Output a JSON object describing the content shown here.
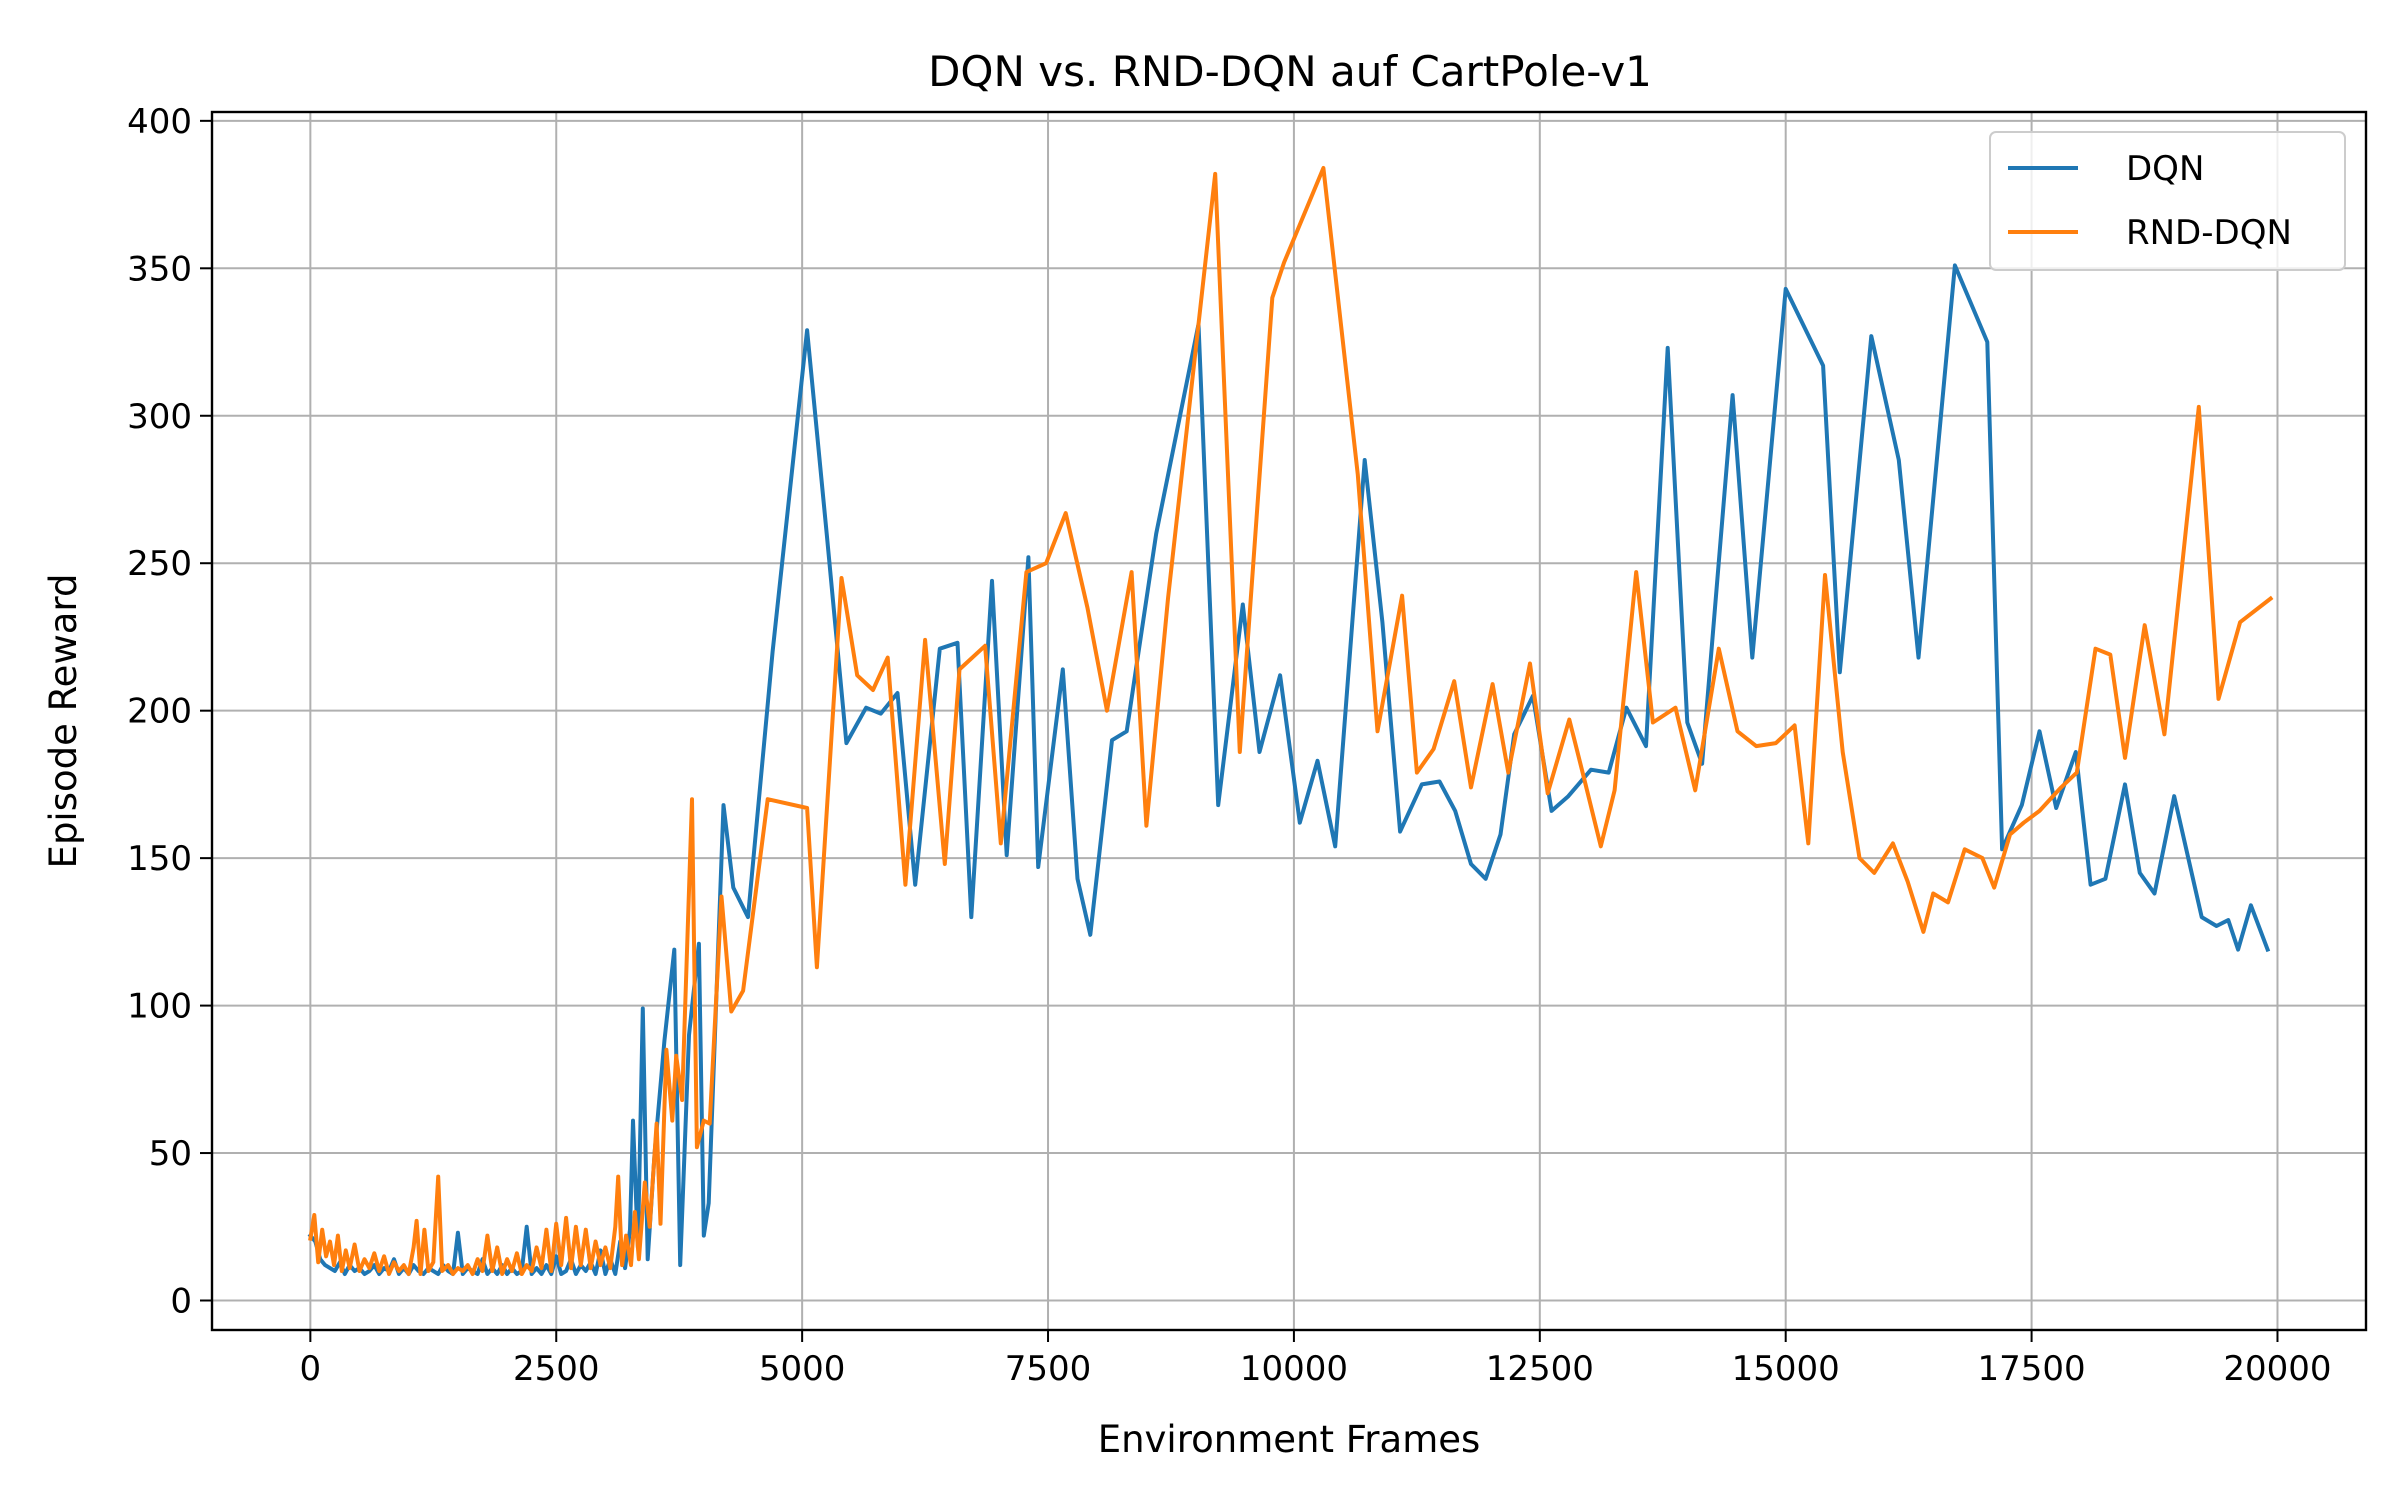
{
  "chart_data": {
    "type": "line",
    "title": "DQN vs. RND-DQN auf CartPole-v1",
    "xlabel": "Environment Frames",
    "ylabel": "Episode Reward",
    "xlim": [
      -1000,
      20900
    ],
    "ylim": [
      -10,
      403
    ],
    "xticks": [
      0,
      2500,
      5000,
      7500,
      10000,
      12500,
      15000,
      17500,
      20000
    ],
    "yticks": [
      0,
      50,
      100,
      150,
      200,
      250,
      300,
      350,
      400
    ],
    "grid": true,
    "legend_position": "top-right",
    "series": [
      {
        "name": "DQN",
        "color": "#1f77b4",
        "points": [
          [
            0,
            22
          ],
          [
            50,
            20
          ],
          [
            100,
            14
          ],
          [
            150,
            12
          ],
          [
            200,
            11
          ],
          [
            250,
            10
          ],
          [
            300,
            13
          ],
          [
            350,
            9
          ],
          [
            400,
            12
          ],
          [
            450,
            10
          ],
          [
            500,
            11
          ],
          [
            550,
            9
          ],
          [
            600,
            10
          ],
          [
            650,
            12
          ],
          [
            700,
            9
          ],
          [
            750,
            11
          ],
          [
            800,
            10
          ],
          [
            850,
            14
          ],
          [
            900,
            9
          ],
          [
            950,
            11
          ],
          [
            1000,
            9
          ],
          [
            1050,
            12
          ],
          [
            1100,
            10
          ],
          [
            1150,
            9
          ],
          [
            1200,
            11
          ],
          [
            1250,
            10
          ],
          [
            1300,
            9
          ],
          [
            1350,
            12
          ],
          [
            1400,
            10
          ],
          [
            1450,
            9
          ],
          [
            1500,
            23
          ],
          [
            1550,
            9
          ],
          [
            1600,
            11
          ],
          [
            1650,
            10
          ],
          [
            1700,
            9
          ],
          [
            1750,
            14
          ],
          [
            1800,
            9
          ],
          [
            1850,
            11
          ],
          [
            1900,
            9
          ],
          [
            1950,
            12
          ],
          [
            2000,
            9
          ],
          [
            2050,
            11
          ],
          [
            2100,
            9
          ],
          [
            2150,
            10
          ],
          [
            2200,
            25
          ],
          [
            2250,
            9
          ],
          [
            2300,
            11
          ],
          [
            2350,
            9
          ],
          [
            2400,
            12
          ],
          [
            2450,
            9
          ],
          [
            2500,
            15
          ],
          [
            2550,
            9
          ],
          [
            2600,
            10
          ],
          [
            2650,
            14
          ],
          [
            2700,
            9
          ],
          [
            2750,
            12
          ],
          [
            2800,
            10
          ],
          [
            2850,
            13
          ],
          [
            2900,
            9
          ],
          [
            2950,
            17
          ],
          [
            3000,
            9
          ],
          [
            3050,
            14
          ],
          [
            3100,
            9
          ],
          [
            3150,
            20
          ],
          [
            3200,
            11
          ],
          [
            3250,
            24
          ],
          [
            3280,
            61
          ],
          [
            3330,
            18
          ],
          [
            3380,
            99
          ],
          [
            3430,
            14
          ],
          [
            3500,
            50
          ],
          [
            3600,
            88
          ],
          [
            3700,
            119
          ],
          [
            3760,
            12
          ],
          [
            3850,
            90
          ],
          [
            3950,
            121
          ],
          [
            4000,
            22
          ],
          [
            4050,
            33
          ],
          [
            4200,
            168
          ],
          [
            4300,
            140
          ],
          [
            4450,
            130
          ],
          [
            4700,
            220
          ],
          [
            5050,
            329
          ],
          [
            5250,
            260
          ],
          [
            5450,
            189
          ],
          [
            5650,
            201
          ],
          [
            5800,
            199
          ],
          [
            5970,
            206
          ],
          [
            6150,
            141
          ],
          [
            6400,
            221
          ],
          [
            6580,
            223
          ],
          [
            6720,
            130
          ],
          [
            6930,
            244
          ],
          [
            7080,
            151
          ],
          [
            7300,
            252
          ],
          [
            7400,
            147
          ],
          [
            7650,
            214
          ],
          [
            7800,
            143
          ],
          [
            7930,
            124
          ],
          [
            8150,
            190
          ],
          [
            8300,
            193
          ],
          [
            8600,
            260
          ],
          [
            9030,
            331
          ],
          [
            9230,
            168
          ],
          [
            9480,
            236
          ],
          [
            9650,
            186
          ],
          [
            9860,
            212
          ],
          [
            10060,
            162
          ],
          [
            10240,
            183
          ],
          [
            10420,
            154
          ],
          [
            10720,
            285
          ],
          [
            10900,
            230
          ],
          [
            11080,
            159
          ],
          [
            11300,
            175
          ],
          [
            11480,
            176
          ],
          [
            11640,
            166
          ],
          [
            11800,
            148
          ],
          [
            11950,
            143
          ],
          [
            12100,
            158
          ],
          [
            12240,
            192
          ],
          [
            12430,
            205
          ],
          [
            12620,
            166
          ],
          [
            12790,
            171
          ],
          [
            13020,
            180
          ],
          [
            13200,
            179
          ],
          [
            13380,
            201
          ],
          [
            13580,
            188
          ],
          [
            13800,
            323
          ],
          [
            14000,
            196
          ],
          [
            14150,
            182
          ],
          [
            14460,
            307
          ],
          [
            14660,
            218
          ],
          [
            15000,
            343
          ],
          [
            15380,
            317
          ],
          [
            15550,
            213
          ],
          [
            15870,
            327
          ],
          [
            16150,
            285
          ],
          [
            16350,
            218
          ],
          [
            16720,
            351
          ],
          [
            17050,
            325
          ],
          [
            17200,
            153
          ],
          [
            17400,
            168
          ],
          [
            17580,
            193
          ],
          [
            17750,
            167
          ],
          [
            17950,
            186
          ],
          [
            18100,
            141
          ],
          [
            18250,
            143
          ],
          [
            18450,
            175
          ],
          [
            18600,
            145
          ],
          [
            18750,
            138
          ],
          [
            18950,
            171
          ],
          [
            19230,
            130
          ],
          [
            19380,
            127
          ],
          [
            19500,
            129
          ],
          [
            19600,
            119
          ],
          [
            19730,
            134
          ],
          [
            19900,
            119
          ]
        ]
      },
      {
        "name": "RND-DQN",
        "color": "#ff7f0e",
        "points": [
          [
            0,
            21
          ],
          [
            40,
            29
          ],
          [
            80,
            13
          ],
          [
            120,
            24
          ],
          [
            160,
            15
          ],
          [
            200,
            20
          ],
          [
            240,
            12
          ],
          [
            280,
            22
          ],
          [
            320,
            10
          ],
          [
            360,
            17
          ],
          [
            400,
            11
          ],
          [
            450,
            19
          ],
          [
            500,
            10
          ],
          [
            550,
            14
          ],
          [
            600,
            11
          ],
          [
            650,
            16
          ],
          [
            700,
            10
          ],
          [
            750,
            15
          ],
          [
            800,
            9
          ],
          [
            850,
            13
          ],
          [
            900,
            10
          ],
          [
            950,
            12
          ],
          [
            1000,
            9
          ],
          [
            1050,
            18
          ],
          [
            1080,
            27
          ],
          [
            1120,
            9
          ],
          [
            1160,
            24
          ],
          [
            1200,
            10
          ],
          [
            1250,
            13
          ],
          [
            1300,
            42
          ],
          [
            1340,
            10
          ],
          [
            1400,
            12
          ],
          [
            1450,
            9
          ],
          [
            1500,
            11
          ],
          [
            1550,
            10
          ],
          [
            1600,
            12
          ],
          [
            1650,
            9
          ],
          [
            1700,
            14
          ],
          [
            1750,
            10
          ],
          [
            1800,
            22
          ],
          [
            1850,
            10
          ],
          [
            1900,
            18
          ],
          [
            1950,
            9
          ],
          [
            2000,
            14
          ],
          [
            2050,
            10
          ],
          [
            2100,
            16
          ],
          [
            2150,
            9
          ],
          [
            2200,
            12
          ],
          [
            2250,
            10
          ],
          [
            2300,
            18
          ],
          [
            2350,
            11
          ],
          [
            2400,
            24
          ],
          [
            2450,
            10
          ],
          [
            2500,
            26
          ],
          [
            2550,
            12
          ],
          [
            2600,
            28
          ],
          [
            2650,
            11
          ],
          [
            2700,
            25
          ],
          [
            2750,
            12
          ],
          [
            2800,
            24
          ],
          [
            2850,
            11
          ],
          [
            2900,
            20
          ],
          [
            2950,
            12
          ],
          [
            3000,
            18
          ],
          [
            3050,
            11
          ],
          [
            3100,
            25
          ],
          [
            3130,
            42
          ],
          [
            3170,
            12
          ],
          [
            3210,
            22
          ],
          [
            3260,
            12
          ],
          [
            3300,
            30
          ],
          [
            3340,
            14
          ],
          [
            3400,
            40
          ],
          [
            3450,
            25
          ],
          [
            3520,
            60
          ],
          [
            3560,
            26
          ],
          [
            3620,
            85
          ],
          [
            3680,
            61
          ],
          [
            3720,
            83
          ],
          [
            3780,
            68
          ],
          [
            3880,
            170
          ],
          [
            3930,
            52
          ],
          [
            4000,
            61
          ],
          [
            4060,
            60
          ],
          [
            4180,
            137
          ],
          [
            4280,
            98
          ],
          [
            4400,
            105
          ],
          [
            4650,
            170
          ],
          [
            5050,
            167
          ],
          [
            5150,
            113
          ],
          [
            5400,
            245
          ],
          [
            5560,
            212
          ],
          [
            5720,
            207
          ],
          [
            5870,
            218
          ],
          [
            6050,
            141
          ],
          [
            6250,
            224
          ],
          [
            6450,
            148
          ],
          [
            6600,
            214
          ],
          [
            6860,
            222
          ],
          [
            7020,
            155
          ],
          [
            7280,
            247
          ],
          [
            7480,
            250
          ],
          [
            7680,
            267
          ],
          [
            7900,
            235
          ],
          [
            8100,
            200
          ],
          [
            8350,
            247
          ],
          [
            8500,
            161
          ],
          [
            8720,
            238
          ],
          [
            9200,
            382
          ],
          [
            9450,
            186
          ],
          [
            9780,
            340
          ],
          [
            9900,
            352
          ],
          [
            10300,
            384
          ],
          [
            10650,
            280
          ],
          [
            10850,
            193
          ],
          [
            11100,
            239
          ],
          [
            11250,
            179
          ],
          [
            11420,
            187
          ],
          [
            11630,
            210
          ],
          [
            11800,
            174
          ],
          [
            12020,
            209
          ],
          [
            12180,
            179
          ],
          [
            12400,
            216
          ],
          [
            12580,
            172
          ],
          [
            12800,
            197
          ],
          [
            12950,
            177
          ],
          [
            13120,
            154
          ],
          [
            13260,
            173
          ],
          [
            13480,
            247
          ],
          [
            13650,
            196
          ],
          [
            13880,
            201
          ],
          [
            14080,
            173
          ],
          [
            14320,
            221
          ],
          [
            14510,
            193
          ],
          [
            14700,
            188
          ],
          [
            14900,
            189
          ],
          [
            15090,
            195
          ],
          [
            15230,
            155
          ],
          [
            15400,
            246
          ],
          [
            15580,
            186
          ],
          [
            15750,
            150
          ],
          [
            15900,
            145
          ],
          [
            16090,
            155
          ],
          [
            16240,
            142
          ],
          [
            16400,
            125
          ],
          [
            16500,
            138
          ],
          [
            16650,
            135
          ],
          [
            16820,
            153
          ],
          [
            17000,
            150
          ],
          [
            17120,
            140
          ],
          [
            17280,
            158
          ],
          [
            17420,
            162
          ],
          [
            17580,
            166
          ],
          [
            17800,
            174
          ],
          [
            17960,
            179
          ],
          [
            18150,
            221
          ],
          [
            18300,
            219
          ],
          [
            18450,
            184
          ],
          [
            18650,
            229
          ],
          [
            18850,
            192
          ],
          [
            19200,
            303
          ],
          [
            19400,
            204
          ],
          [
            19620,
            230
          ],
          [
            19930,
            238
          ]
        ]
      }
    ]
  }
}
